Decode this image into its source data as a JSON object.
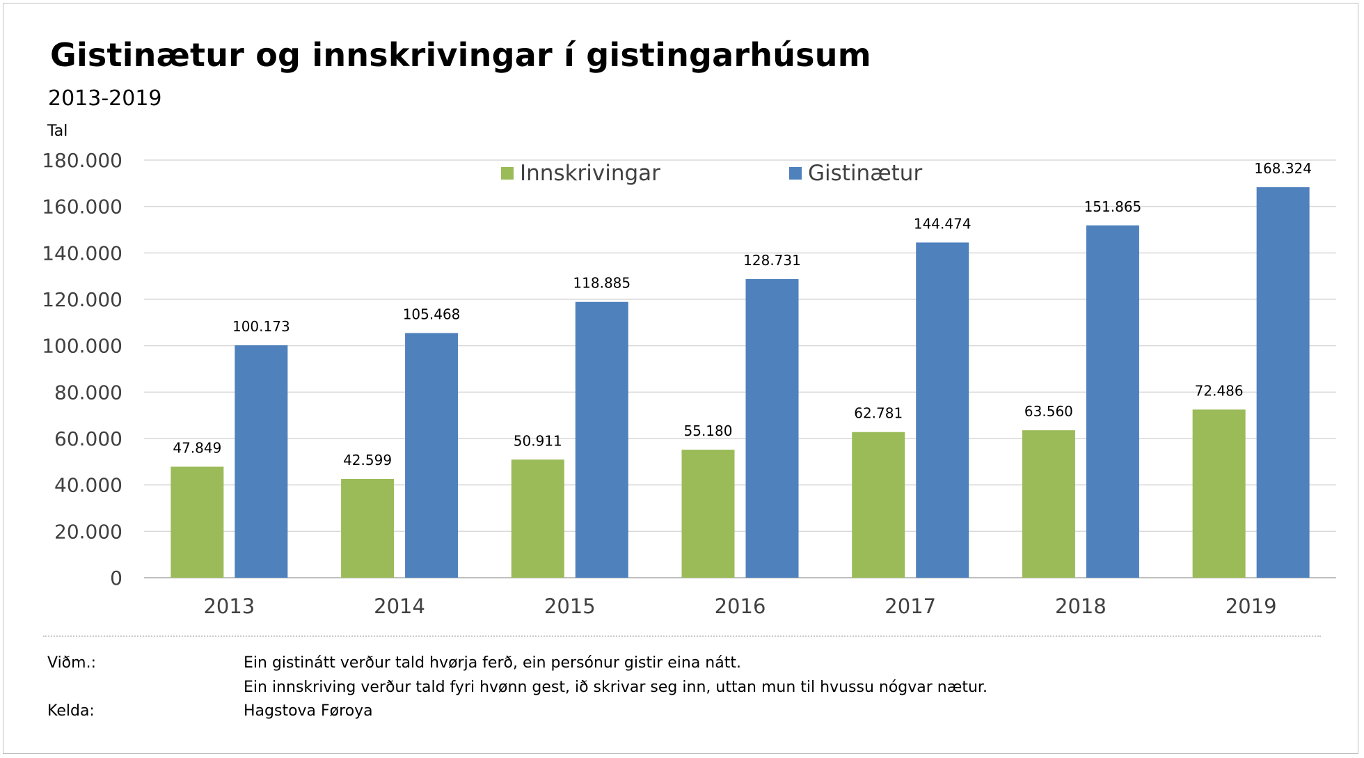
{
  "title": "Gistinætur og innskrivingar í gistingarhúsum",
  "subtitle": "2013-2019",
  "unit_label": "Tal",
  "chart_data": {
    "type": "bar",
    "categories": [
      "2013",
      "2014",
      "2015",
      "2016",
      "2017",
      "2018",
      "2019"
    ],
    "series": [
      {
        "name": "Innskrivingar",
        "color": "#9bbb59",
        "values": [
          47849,
          42599,
          50911,
          55180,
          62781,
          63560,
          72486
        ],
        "labels": [
          "47.849",
          "42.599",
          "50.911",
          "55.180",
          "62.781",
          "63.560",
          "72.486"
        ]
      },
      {
        "name": "Gistinætur",
        "color": "#4f81bd",
        "values": [
          100173,
          105468,
          118885,
          128731,
          144474,
          151865,
          168324
        ],
        "labels": [
          "100.173",
          "105.468",
          "118.885",
          "128.731",
          "144.474",
          "151.865",
          "168.324"
        ]
      }
    ],
    "ylim": [
      0,
      180000
    ],
    "yticks": [
      0,
      20000,
      40000,
      60000,
      80000,
      100000,
      120000,
      140000,
      160000,
      180000
    ],
    "ytick_labels": [
      "0",
      "20.000",
      "40.000",
      "60.000",
      "80.000",
      "100.000",
      "120.000",
      "140.000",
      "160.000",
      "180.000"
    ],
    "grid": true,
    "legend_position": "top-center"
  },
  "notes": {
    "remark_key": "Viðm.:",
    "remark_line1": "Ein gistinátt verður tald hvørja ferð, ein persónur gistir eina nátt.",
    "remark_line2": "Ein innskriving verður tald fyri hvønn gest, ið skrivar seg inn, uttan mun til hvussu nógvar nætur.",
    "source_key": "Kelda:",
    "source_value": "Hagstova Føroya"
  }
}
